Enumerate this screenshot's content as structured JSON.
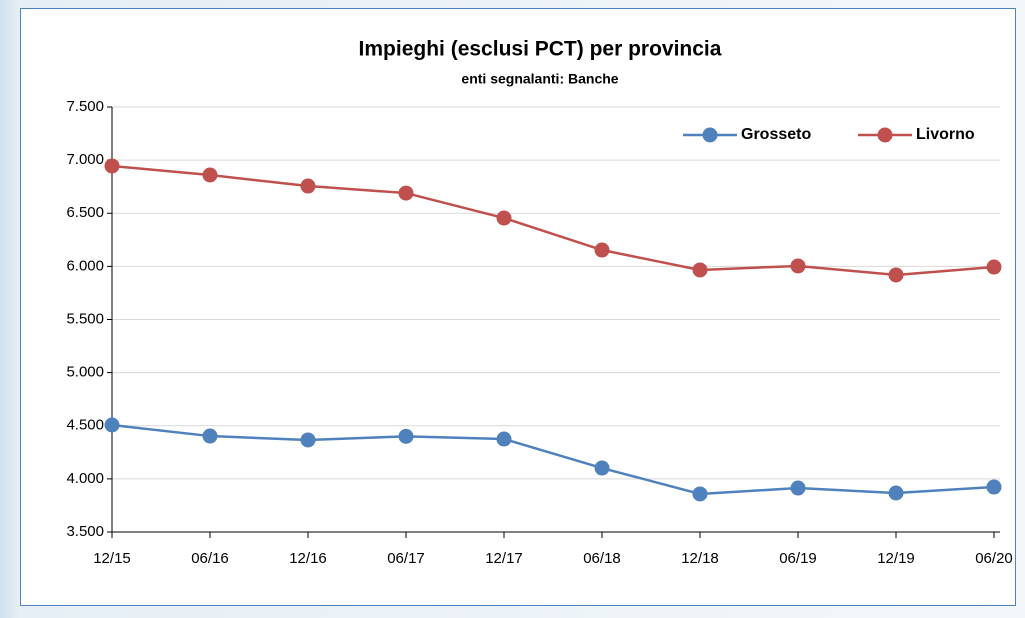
{
  "chart_data": {
    "type": "line",
    "title": "Impieghi (esclusi PCT) per provincia",
    "subtitle": "enti segnalanti: Banche",
    "categories": [
      "12/15",
      "06/16",
      "12/16",
      "06/17",
      "12/17",
      "06/18",
      "12/18",
      "06/19",
      "12/19",
      "06/20"
    ],
    "series": [
      {
        "name": "Grosseto",
        "color": "#4f81bd",
        "values": [
          4507,
          4403,
          4366,
          4400,
          4375,
          4102,
          3858,
          3914,
          3867,
          3923
        ]
      },
      {
        "name": "Livorno",
        "color": "#c0504d",
        "values": [
          6945,
          6860,
          6756,
          6690,
          6455,
          6154,
          5966,
          6004,
          5919,
          5994
        ]
      }
    ],
    "ylim": [
      3500,
      7500
    ],
    "yticks": [
      {
        "value": 3500,
        "label": "3.500"
      },
      {
        "value": 4000,
        "label": "4.000"
      },
      {
        "value": 4500,
        "label": "4.500"
      },
      {
        "value": 5000,
        "label": "5.000"
      },
      {
        "value": 5500,
        "label": "5.500"
      },
      {
        "value": 6000,
        "label": "6.000"
      },
      {
        "value": 6500,
        "label": "6.500"
      },
      {
        "value": 7000,
        "label": "7.000"
      },
      {
        "value": 7500,
        "label": "7.500"
      }
    ],
    "grid": true,
    "legend": "top-right"
  }
}
